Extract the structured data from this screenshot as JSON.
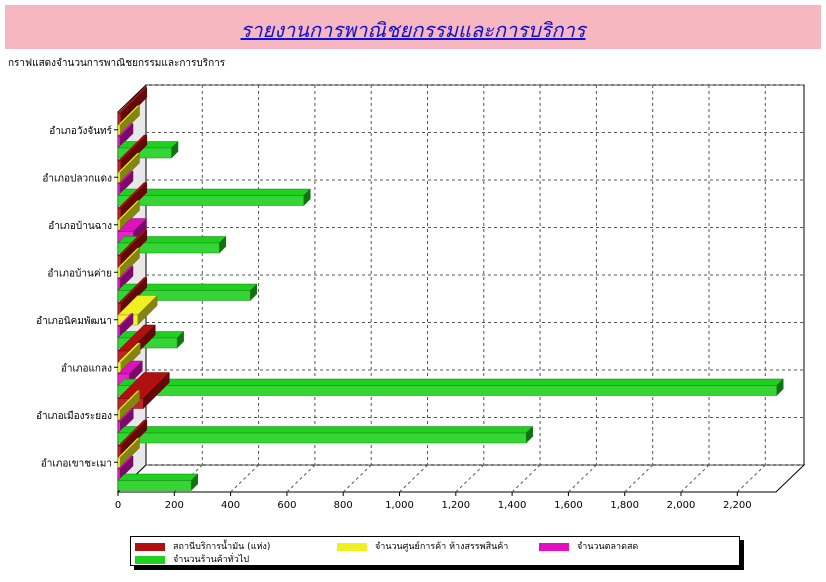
{
  "header": {
    "title": "รายงานการพาณิชยกรรมและการบริการ"
  },
  "subtitle": "กราฟแสดงจำนวนการพาณิชยกรรมและการบริการ",
  "chart_data": {
    "type": "bar",
    "orientation": "horizontal",
    "style": "3d",
    "categories": [
      "อำเภอวังจันทร์",
      "อำเภอปลวกแดง",
      "อำเภอบ้านฉาง",
      "อำเภอบ้านค่าย",
      "อำเภอนิคมพัฒนา",
      "อำเภอแกลง",
      "อำเภอเมืองระยอง",
      "อำเภอเขาชะเมา"
    ],
    "series": [
      {
        "name": "สถานีบริการน้ำมัน (แห่ง)",
        "color": "#b01010",
        "values": [
          10,
          10,
          10,
          10,
          10,
          40,
          90,
          10
        ]
      },
      {
        "name": "จำนวนศูนย์การค้า ห้างสรรพสินค้า",
        "color": "#f0f020",
        "values": [
          2,
          3,
          4,
          5,
          70,
          10,
          5,
          2
        ]
      },
      {
        "name": "จำนวนตลาดสด",
        "color": "#e010c0",
        "values": [
          5,
          5,
          55,
          5,
          5,
          40,
          8,
          5
        ]
      },
      {
        "name": "จำนวนร้านค้าทั่วไป",
        "color": "#20d020",
        "values": [
          190,
          660,
          360,
          470,
          210,
          2340,
          1450,
          260
        ]
      }
    ],
    "xticks": [
      "0",
      "200",
      "400",
      "600",
      "800",
      "1,000",
      "1,200",
      "1,400",
      "1,600",
      "1,800",
      "2,000",
      "2,200"
    ],
    "xlim": [
      0,
      2340
    ],
    "grid": true,
    "legend_position": "bottom"
  }
}
